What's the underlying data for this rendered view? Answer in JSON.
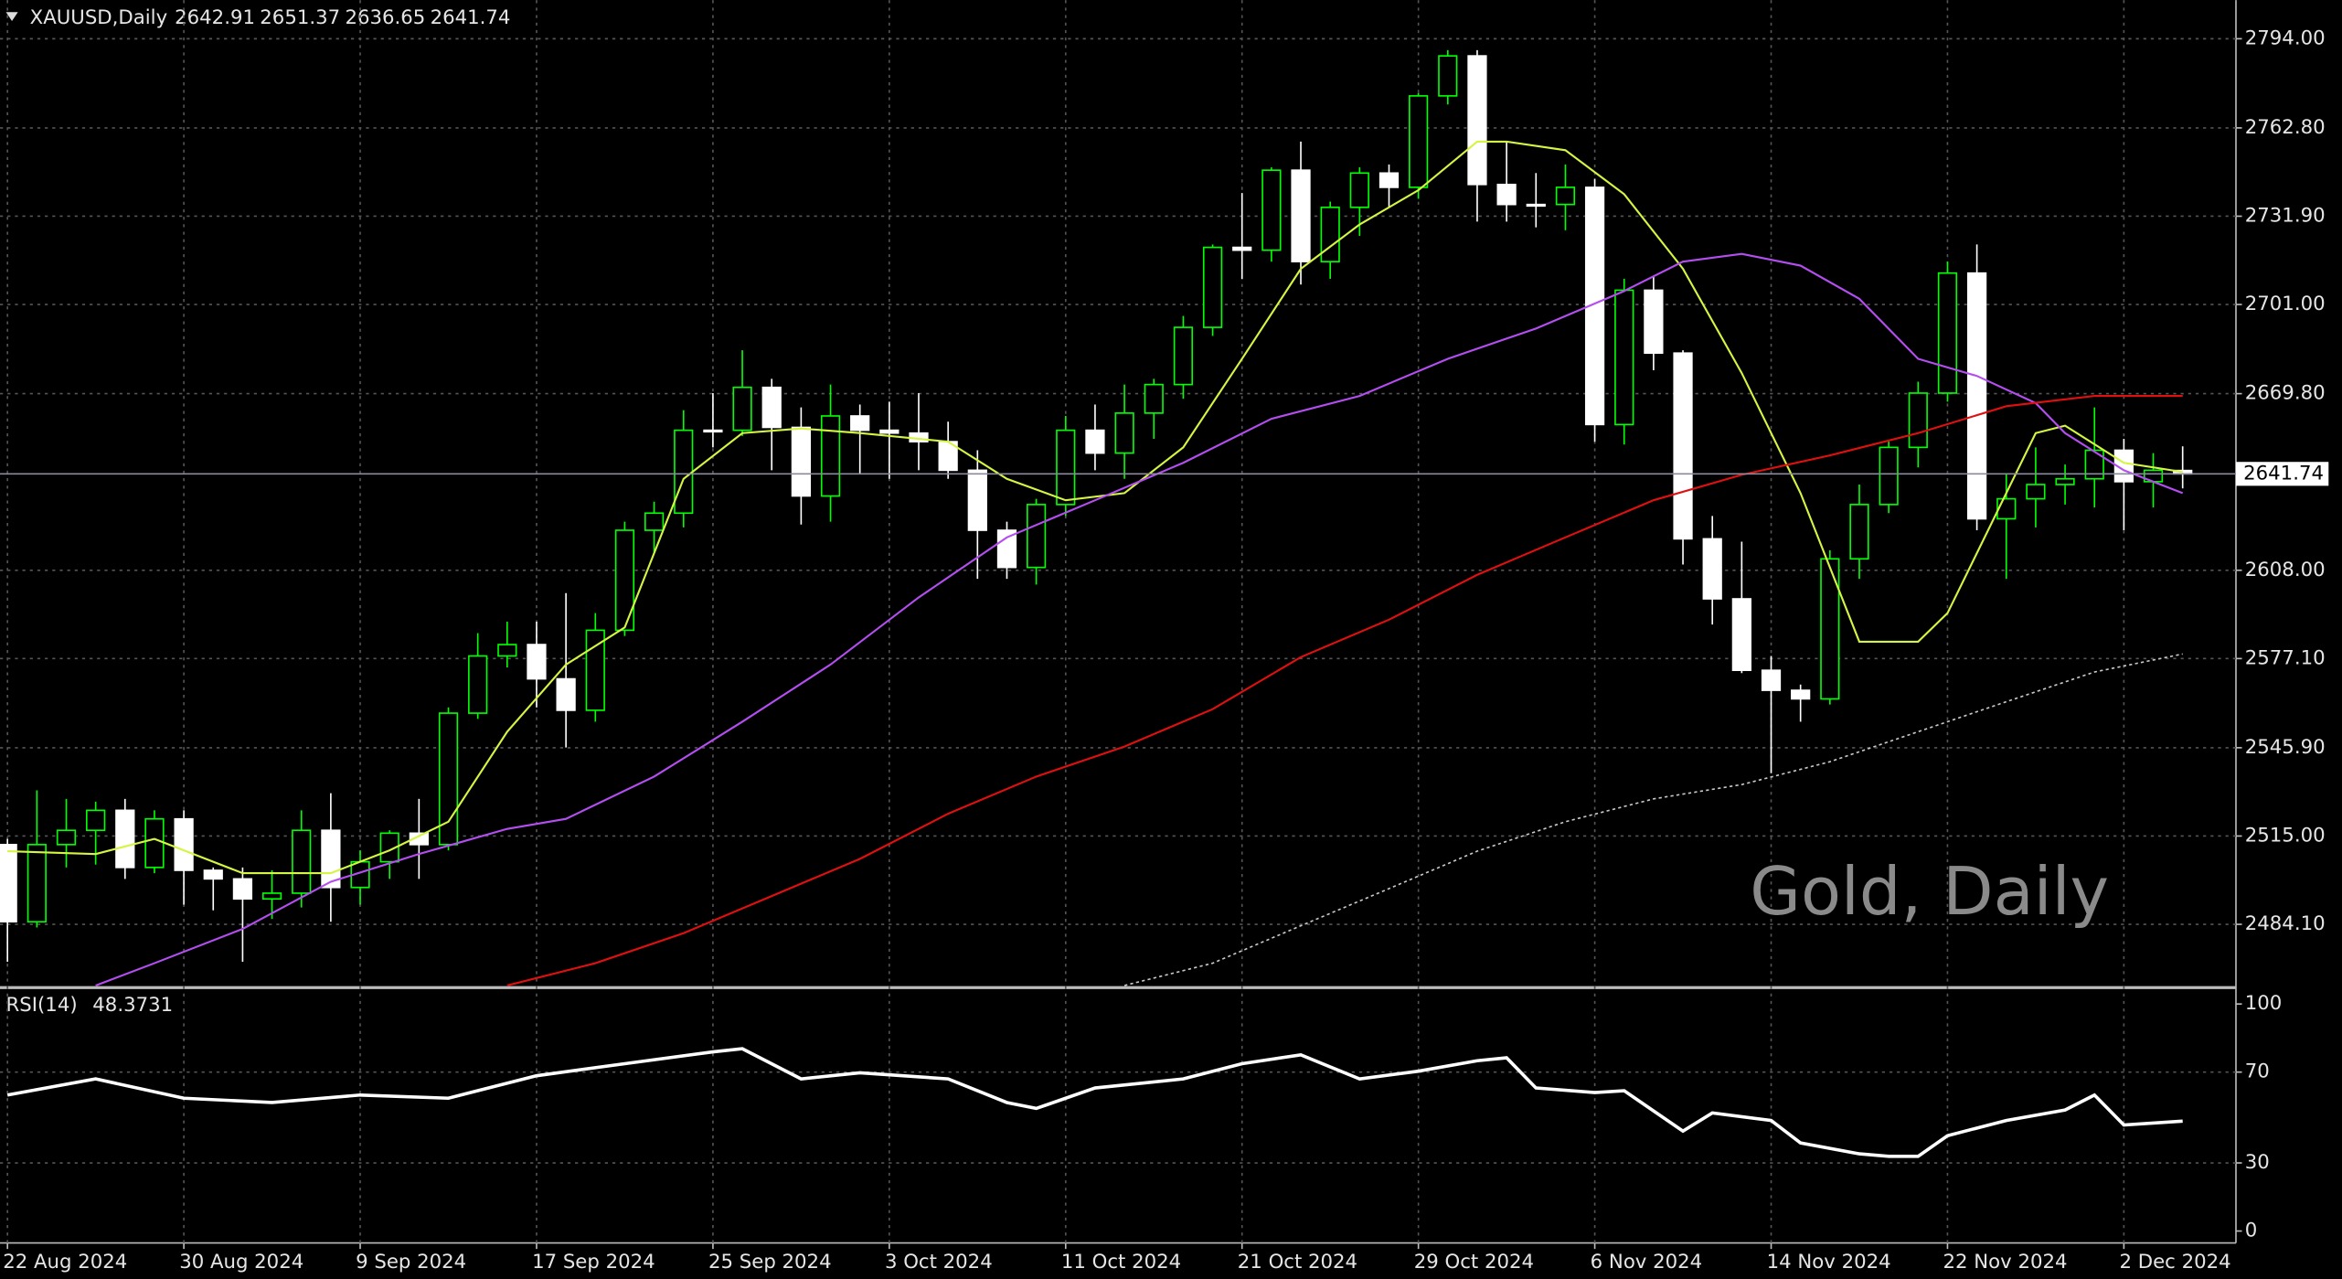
{
  "chart_data": {
    "type": "candlestick",
    "symbol": "XAUUSD,Daily",
    "ohlc": [
      2642.91,
      2651.37,
      2636.65,
      2641.74
    ],
    "watermark": "Gold, Daily",
    "categories": [
      "22 Aug 2024",
      null,
      null,
      null,
      null,
      null,
      "30 Aug 2024",
      null,
      null,
      null,
      null,
      null,
      "9 Sep 2024",
      null,
      null,
      null,
      null,
      null,
      "17 Sep 2024",
      null,
      null,
      null,
      null,
      null,
      "25 Sep 2024",
      null,
      null,
      null,
      null,
      null,
      "3 Oct 2024",
      null,
      null,
      null,
      null,
      null,
      "11 Oct 2024",
      null,
      null,
      null,
      null,
      null,
      "21 Oct 2024",
      null,
      null,
      null,
      null,
      null,
      "29 Oct 2024",
      null,
      null,
      null,
      null,
      null,
      "6 Nov 2024",
      null,
      null,
      null,
      null,
      null,
      "14 Nov 2024",
      null,
      null,
      null,
      null,
      null,
      "22 Nov 2024",
      null,
      null,
      null,
      null,
      null,
      "2 Dec 2024",
      null,
      null
    ],
    "open": [
      2512,
      2485,
      2512,
      2517,
      2524,
      2504,
      2521,
      2503,
      2500,
      2493,
      2495,
      2517,
      2497,
      2506,
      2516,
      2512,
      2558,
      2578,
      2582,
      2570,
      2559,
      2587,
      2622,
      2628,
      2657,
      2657,
      2672,
      2658,
      2634,
      2662,
      2657,
      2656,
      2653,
      2643,
      2622,
      2609,
      2631,
      2657,
      2649,
      2663,
      2673,
      2693,
      2721,
      2720,
      2748,
      2716,
      2735,
      2747,
      2742,
      2774,
      2788,
      2743,
      2736,
      2736,
      2742,
      2659,
      2706,
      2684,
      2619,
      2598,
      2573,
      2566,
      2563,
      2612,
      2631,
      2651,
      2670,
      2712,
      2626,
      2633,
      2638,
      2640,
      2650,
      2639,
      2642.91
    ],
    "high": [
      2514,
      2531,
      2528,
      2527,
      2528,
      2524,
      2524,
      2504,
      2504,
      2503,
      2524,
      2530,
      2510,
      2517,
      2528,
      2560,
      2586,
      2590,
      2590,
      2600,
      2593,
      2625,
      2632,
      2664,
      2670,
      2685,
      2675,
      2665,
      2673,
      2666,
      2667,
      2670,
      2660,
      2650,
      2625,
      2633,
      2662,
      2666,
      2673,
      2675,
      2697,
      2722,
      2740,
      2749,
      2758,
      2737,
      2749,
      2750,
      2775,
      2790,
      2790,
      2758,
      2747,
      2750,
      2745,
      2710,
      2711,
      2685,
      2627,
      2618,
      2578,
      2568,
      2615,
      2638,
      2653,
      2674,
      2716,
      2722,
      2642,
      2651,
      2645,
      2665,
      2654,
      2649,
      2651.37
    ],
    "low": [
      2471,
      2483,
      2504,
      2505,
      2500,
      2502,
      2491,
      2489,
      2471,
      2486,
      2490,
      2485,
      2491,
      2500,
      2500,
      2510,
      2556,
      2574,
      2560,
      2546,
      2555,
      2585,
      2614,
      2623,
      2651,
      2655,
      2643,
      2624,
      2625,
      2642,
      2640,
      2643,
      2640,
      2605,
      2605,
      2603,
      2627,
      2643,
      2640,
      2654,
      2668,
      2690,
      2710,
      2716,
      2708,
      2710,
      2725,
      2735,
      2738,
      2771,
      2730,
      2730,
      2728,
      2727,
      2653,
      2652,
      2678,
      2610,
      2589,
      2572,
      2537,
      2555,
      2561,
      2605,
      2628,
      2644,
      2667,
      2622,
      2605,
      2623,
      2631,
      2630,
      2622,
      2630,
      2636.65
    ],
    "close": [
      2485,
      2512,
      2517,
      2524,
      2504,
      2521,
      2503,
      2500,
      2493,
      2495,
      2517,
      2497,
      2506,
      2516,
      2512,
      2558,
      2578,
      2582,
      2570,
      2559,
      2587,
      2622,
      2628,
      2657,
      2657,
      2672,
      2658,
      2634,
      2662,
      2657,
      2656,
      2653,
      2643,
      2622,
      2609,
      2631,
      2657,
      2649,
      2663,
      2673,
      2693,
      2721,
      2720,
      2748,
      2716,
      2735,
      2747,
      2742,
      2774,
      2788,
      2743,
      2736,
      2736,
      2742,
      2659,
      2706,
      2684,
      2619,
      2598,
      2573,
      2566,
      2563,
      2612,
      2631,
      2651,
      2670,
      2712,
      2626,
      2633,
      2638,
      2640,
      2650,
      2639,
      2643,
      2641.74
    ],
    "bull_color": "#00ff00",
    "bear_color": "#ffffff",
    "lines": [
      {
        "color": "#d4f542",
        "style": "solid",
        "x": [
          0,
          3,
          5,
          8,
          11,
          13,
          15,
          17,
          19,
          21,
          23,
          25,
          27,
          29,
          32,
          34,
          36,
          38,
          40,
          42,
          44,
          46,
          48,
          50,
          51,
          53,
          55,
          57,
          59,
          61,
          63,
          65,
          66,
          67,
          69,
          70,
          72,
          74
        ],
        "values": [
          2509.7,
          2508.7,
          2514,
          2502,
          2502,
          2510,
          2520,
          2551.5,
          2575,
          2588,
          2640,
          2656,
          2657.6,
          2656,
          2653,
          2640,
          2632.5,
          2635,
          2651,
          2682,
          2713.5,
          2729,
          2741,
          2758,
          2758,
          2755,
          2739.6,
          2713.5,
          2677,
          2635,
          2583,
          2583,
          2593,
          2614,
          2656,
          2658.6,
          2645.6,
          2642.4
        ]
      },
      {
        "color": "#b44ef0",
        "style": "solid",
        "x": [
          3,
          5,
          8,
          11,
          14,
          17,
          19,
          22,
          25,
          28,
          31,
          34,
          37,
          40,
          43,
          46,
          49,
          52,
          55,
          57,
          59,
          61,
          63,
          65,
          67,
          69,
          70,
          72,
          74
        ],
        "values": [
          2462.7,
          2470.5,
          2482.5,
          2499,
          2508.7,
          2517.5,
          2521,
          2535.8,
          2555,
          2575,
          2598.5,
          2619.5,
          2632.5,
          2645.6,
          2661,
          2669,
          2682,
          2692.6,
          2705.7,
          2716,
          2718.7,
          2714.6,
          2703,
          2682,
          2676,
          2666.5,
          2656,
          2643,
          2635
        ]
      },
      {
        "color": "#e01010",
        "style": "solid",
        "x": [
          17,
          20,
          23,
          26,
          29,
          32,
          35,
          38,
          41,
          44,
          47,
          50,
          53,
          56,
          59,
          62,
          65,
          68,
          71,
          74
        ],
        "values": [
          2462.7,
          2470.5,
          2481,
          2494,
          2507,
          2522.8,
          2535.8,
          2546.3,
          2559.4,
          2577.6,
          2590.7,
          2606.4,
          2619.5,
          2632.5,
          2641.4,
          2648.2,
          2656,
          2665.4,
          2669,
          2669
        ]
      },
      {
        "color": "#c8c8c8",
        "style": "dotted",
        "x": [
          38,
          41,
          44,
          47,
          50,
          53,
          56,
          59,
          62,
          65,
          68,
          71,
          74
        ],
        "values": [
          2462.7,
          2470.5,
          2483.6,
          2496.6,
          2509.7,
          2520,
          2528,
          2533,
          2541,
          2551.5,
          2562,
          2572.4,
          2578.7
        ]
      }
    ],
    "current_price": 2641.74,
    "ylim": [
      2462.5,
      2807.5
    ],
    "yticks": [
      {
        "value": 2794,
        "label": "2794.00"
      },
      {
        "value": 2762.8,
        "label": "2762.80"
      },
      {
        "value": 2731.9,
        "label": "2731.90"
      },
      {
        "value": 2701,
        "label": "2701.00"
      },
      {
        "value": 2669.8,
        "label": "2669.80"
      },
      {
        "value": 2608,
        "label": "2608.00"
      },
      {
        "value": 2577.1,
        "label": "2577.10"
      },
      {
        "value": 2545.9,
        "label": "2545.90"
      },
      {
        "value": 2515,
        "label": "2515.00"
      },
      {
        "value": 2484.1,
        "label": "2484.10"
      }
    ],
    "grid": true,
    "rsi": {
      "title": "RSI(14)",
      "current": 48.3731,
      "color": "#ffffff",
      "ylim": [
        0,
        100
      ],
      "yticks": [
        100,
        70,
        30,
        0
      ],
      "x": [
        0,
        3,
        6,
        9,
        12,
        15,
        18,
        21,
        24,
        25,
        27,
        29,
        32,
        34,
        35,
        37,
        40,
        42,
        44,
        46,
        48,
        50,
        51,
        52,
        54,
        55,
        57,
        58,
        60,
        61,
        63,
        64,
        65,
        66,
        68,
        70,
        71,
        72,
        74
      ],
      "values": [
        59.9,
        67,
        58.5,
        56.6,
        59.9,
        58.5,
        68.4,
        73.7,
        78.9,
        80.3,
        67,
        69.7,
        67,
        56.6,
        54,
        63,
        67,
        73.7,
        77.6,
        67,
        70.4,
        75,
        76.3,
        63,
        61,
        61.8,
        44,
        52,
        48.7,
        38.8,
        34,
        32.9,
        32.9,
        42,
        48.7,
        53.3,
        59.9,
        46.7,
        48.4
      ]
    }
  }
}
